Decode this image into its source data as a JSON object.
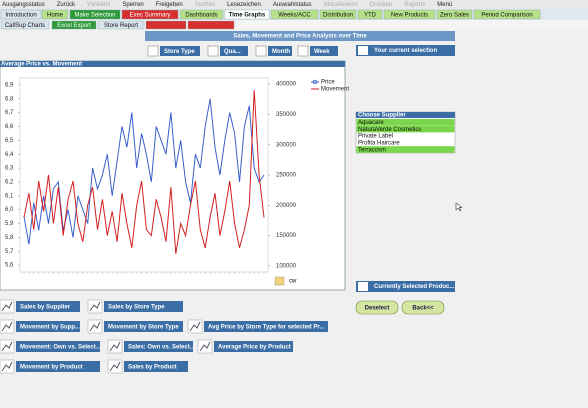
{
  "toolbar": [
    "Ausgangsstatus",
    "Zurück",
    "Vorwärts",
    "Sperren",
    "Freigeben",
    "Suchen",
    "Lesezeichen",
    "Auswahlstatus",
    "Aktualisieren",
    "Drucken",
    "Reports",
    "Menü"
  ],
  "tabs": [
    "Introduction",
    "Home",
    "Make Selection",
    "Exec Summary",
    "Dashboards",
    "Time Graphs",
    "Weeks/ACC",
    "Distribution",
    "YTD",
    "New Products",
    "Zero Sales",
    "Period Comparison"
  ],
  "subtabs": [
    "CallSup Charts",
    "Excel Export",
    "Store Report"
  ],
  "header": {
    "title": "Sales, Movement and Price Analysis over Time"
  },
  "filters": [
    "Store Type",
    "Qua...",
    "Month",
    "Week"
  ],
  "current_selection": "Your current selection",
  "chart_window": {
    "caption": "Average Price vs. Movement",
    "cycle_label": "cw",
    "chart_data": {
      "type": "line",
      "categories": [
        null,
        null,
        null,
        null,
        null,
        null,
        null,
        null,
        null,
        null,
        null,
        null,
        null,
        null,
        null,
        null,
        null,
        null,
        null,
        null,
        null,
        null,
        null,
        null,
        null,
        null,
        null,
        null,
        null,
        null,
        null,
        null,
        null,
        null,
        null,
        null,
        null,
        null,
        null,
        null,
        null,
        null,
        null,
        null,
        null,
        null,
        null,
        null,
        null,
        null
      ],
      "series": [
        {
          "name": "Price",
          "color": "#3a5fcd",
          "axis": "y",
          "values": [
            5.95,
            5.75,
            6.05,
            5.85,
            6.1,
            5.9,
            6.15,
            6.2,
            5.85,
            6.0,
            5.8,
            6.1,
            6.0,
            5.9,
            6.3,
            6.15,
            6.25,
            6.4,
            6.1,
            6.35,
            6.6,
            6.45,
            6.7,
            6.3,
            6.55,
            6.4,
            6.2,
            6.6,
            6.5,
            6.4,
            6.7,
            6.3,
            6.5,
            6.2,
            6.05,
            6.4,
            6.3,
            6.6,
            6.8,
            6.45,
            6.25,
            6.5,
            6.7,
            6.55,
            6.2,
            6.6,
            6.75,
            6.3,
            6.2,
            6.25
          ]
        },
        {
          "name": "Movement",
          "color": "#d42020",
          "axis": "y2",
          "values": [
            180000,
            220000,
            160000,
            240000,
            190000,
            250000,
            170000,
            230000,
            150000,
            210000,
            240000,
            170000,
            140000,
            200000,
            230000,
            160000,
            210000,
            150000,
            190000,
            140000,
            220000,
            170000,
            130000,
            200000,
            240000,
            160000,
            150000,
            210000,
            180000,
            140000,
            230000,
            120000,
            170000,
            150000,
            200000,
            240000,
            160000,
            130000,
            180000,
            220000,
            150000,
            190000,
            240000,
            170000,
            130000,
            160000,
            200000,
            390000,
            250000,
            180000
          ]
        }
      ],
      "ylim": [
        5.55,
        6.95
      ],
      "yticks": [
        {
          "value": 5.6,
          "label": "5,6"
        },
        {
          "value": 5.7,
          "label": "5,7"
        },
        {
          "value": 5.8,
          "label": "5,8"
        },
        {
          "value": 5.9,
          "label": "5,9"
        },
        {
          "value": 6.0,
          "label": "6,0"
        },
        {
          "value": 6.1,
          "label": "6,1"
        },
        {
          "value": 6.2,
          "label": "6,2"
        },
        {
          "value": 6.3,
          "label": "6,3"
        },
        {
          "value": 6.4,
          "label": "6,4"
        },
        {
          "value": 6.5,
          "label": "6,5"
        },
        {
          "value": 6.6,
          "label": "6,6"
        },
        {
          "value": 6.7,
          "label": "6,7"
        },
        {
          "value": 6.8,
          "label": "6,8"
        },
        {
          "value": 6.9,
          "label": "6,9"
        }
      ],
      "y2lim": [
        90000,
        410000
      ],
      "y2ticks": [
        100000,
        150000,
        200000,
        250000,
        300000,
        350000,
        400000
      ],
      "grid": false
    }
  },
  "supplier_list": {
    "title": "Choose Supplier",
    "items": [
      "Aquacare",
      "NaturaVerde Cosmetics",
      "Private Label",
      "Profita Haircare",
      "Terracosm"
    ]
  },
  "selected_products": "Currently Selected Produc...",
  "actions": [
    "Deselect",
    "Back<<"
  ],
  "chart_buttons": [
    "Sales by Supplier",
    "Sales by Store Type",
    "Movement by Supp...",
    "Movement by Store Type",
    "Avg Price by Store Type for selected Pr...",
    "Movement: Own vs. Select...",
    "Sales: Own vs. Select...",
    "Average Price by Product",
    "Movement by Product",
    "Sales by Product"
  ]
}
